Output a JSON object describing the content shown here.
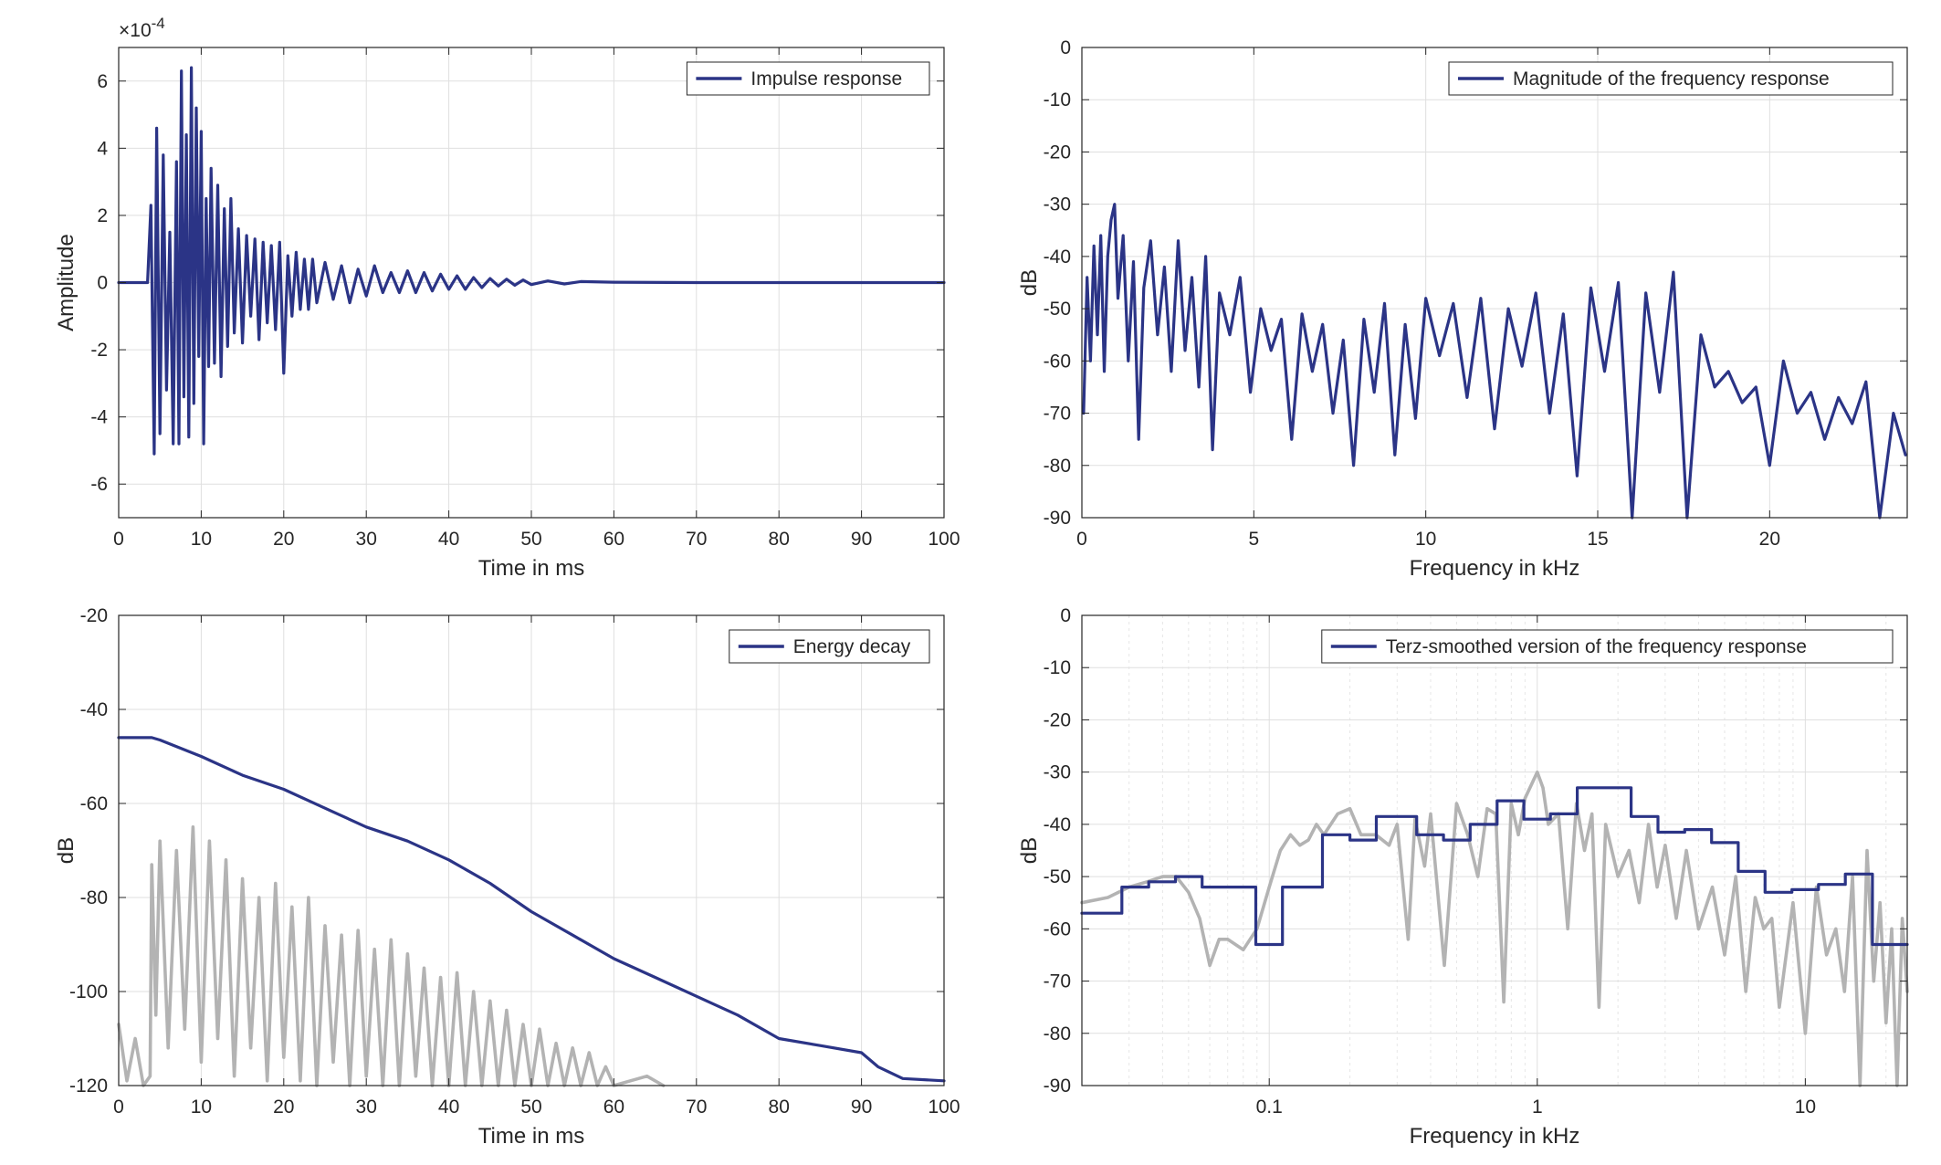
{
  "colors": {
    "main": "#2b3486",
    "gray": "#b3b3b3",
    "axis": "#262626",
    "grid": "#dfdfdf"
  },
  "chart_data": [
    {
      "id": "impulse",
      "type": "line",
      "xlabel": "Time in ms",
      "ylabel": "Amplitude",
      "exponent": "×10^-4",
      "xlim": [
        0,
        100
      ],
      "ylim": [
        -7,
        7
      ],
      "xticks": [
        0,
        10,
        20,
        30,
        40,
        50,
        60,
        70,
        80,
        90,
        100
      ],
      "yticks": [
        -6,
        -4,
        -2,
        0,
        2,
        4,
        6
      ],
      "legend": "top-right",
      "series": [
        {
          "name": "Impulse response",
          "color": "#2b3486",
          "x": [
            0,
            3.5,
            3.9,
            4.3,
            4.6,
            5.0,
            5.4,
            5.8,
            6.2,
            6.6,
            7.0,
            7.3,
            7.6,
            7.9,
            8.2,
            8.5,
            8.8,
            9.1,
            9.4,
            9.7,
            10.0,
            10.3,
            10.6,
            10.9,
            11.2,
            11.6,
            12.0,
            12.4,
            12.8,
            13.2,
            13.6,
            14.0,
            14.5,
            15.0,
            15.5,
            16.0,
            16.5,
            17.0,
            17.5,
            18.0,
            18.5,
            19.0,
            19.5,
            20.0,
            20.5,
            21.0,
            21.5,
            22.0,
            22.5,
            23.0,
            23.5,
            24.0,
            25.0,
            26.0,
            27.0,
            28.0,
            29.0,
            30.0,
            31.0,
            32.0,
            33.0,
            34.0,
            35.0,
            36.0,
            37.0,
            38.0,
            39.0,
            40.0,
            41.0,
            42.0,
            43.0,
            44.0,
            45.0,
            46.0,
            47.0,
            48.0,
            49.0,
            50.0,
            52.0,
            54.0,
            56.0,
            60.0,
            70.0,
            80.0,
            90.0,
            100.0
          ],
          "y": [
            0,
            0,
            2.3,
            -5.1,
            4.6,
            -4.5,
            3.8,
            -3.2,
            1.5,
            -4.8,
            3.6,
            -4.8,
            6.3,
            -3.4,
            4.4,
            -4.6,
            6.4,
            -3.6,
            5.2,
            -2.2,
            4.5,
            -4.8,
            2.5,
            -2.5,
            3.4,
            -2.4,
            2.9,
            -2.8,
            2.2,
            -1.9,
            2.5,
            -1.5,
            1.6,
            -1.8,
            1.4,
            -1.0,
            1.3,
            -1.7,
            1.2,
            -1.2,
            1.1,
            -1.4,
            1.2,
            -2.7,
            0.8,
            -1.0,
            0.9,
            -0.8,
            0.7,
            -0.8,
            0.7,
            -0.6,
            0.6,
            -0.5,
            0.5,
            -0.6,
            0.4,
            -0.4,
            0.5,
            -0.3,
            0.3,
            -0.3,
            0.35,
            -0.3,
            0.3,
            -0.25,
            0.25,
            -0.2,
            0.2,
            -0.2,
            0.15,
            -0.15,
            0.12,
            -0.1,
            0.1,
            -0.08,
            0.08,
            -0.06,
            0.05,
            -0.04,
            0.03,
            0.01,
            0,
            0,
            0,
            0
          ]
        }
      ]
    },
    {
      "id": "magnitude",
      "type": "line",
      "xlabel": "Frequency in kHz",
      "ylabel": "dB",
      "xlim": [
        0,
        24
      ],
      "ylim": [
        -90,
        0
      ],
      "xticks": [
        0,
        5,
        10,
        15,
        20
      ],
      "yticks": [
        0,
        -10,
        -20,
        -30,
        -40,
        -50,
        -60,
        -70,
        -80,
        -90
      ],
      "legend": "top-right",
      "series": [
        {
          "name": "Magnitude of the frequency response",
          "color": "#2b3486",
          "x": [
            0.05,
            0.15,
            0.25,
            0.35,
            0.45,
            0.55,
            0.65,
            0.75,
            0.85,
            0.95,
            1.05,
            1.2,
            1.35,
            1.5,
            1.65,
            1.8,
            2.0,
            2.2,
            2.4,
            2.6,
            2.8,
            3.0,
            3.2,
            3.4,
            3.6,
            3.8,
            4.0,
            4.3,
            4.6,
            4.9,
            5.2,
            5.5,
            5.8,
            6.1,
            6.4,
            6.7,
            7.0,
            7.3,
            7.6,
            7.9,
            8.2,
            8.5,
            8.8,
            9.1,
            9.4,
            9.7,
            10.0,
            10.4,
            10.8,
            11.2,
            11.6,
            12.0,
            12.4,
            12.8,
            13.2,
            13.6,
            14.0,
            14.4,
            14.8,
            15.2,
            15.6,
            16.0,
            16.4,
            16.8,
            17.2,
            17.6,
            18.0,
            18.4,
            18.8,
            19.2,
            19.6,
            20.0,
            20.4,
            20.8,
            21.2,
            21.6,
            22.0,
            22.4,
            22.8,
            23.2,
            23.6,
            23.95
          ],
          "y": [
            -70,
            -44,
            -60,
            -38,
            -55,
            -36,
            -62,
            -40,
            -33,
            -30,
            -48,
            -36,
            -60,
            -41,
            -75,
            -46,
            -37,
            -55,
            -42,
            -62,
            -37,
            -58,
            -44,
            -65,
            -40,
            -77,
            -47,
            -55,
            -44,
            -66,
            -50,
            -58,
            -52,
            -75,
            -51,
            -62,
            -53,
            -70,
            -56,
            -80,
            -52,
            -66,
            -49,
            -78,
            -53,
            -71,
            -48,
            -59,
            -49,
            -67,
            -48,
            -73,
            -50,
            -61,
            -47,
            -70,
            -51,
            -82,
            -46,
            -62,
            -45,
            -90,
            -47,
            -66,
            -43,
            -90,
            -55,
            -65,
            -62,
            -68,
            -65,
            -80,
            -60,
            -70,
            -66,
            -75,
            -67,
            -72,
            -64,
            -90,
            -70,
            -78
          ]
        }
      ]
    },
    {
      "id": "energy",
      "type": "line",
      "xlabel": "Time in ms",
      "ylabel": "dB",
      "xlim": [
        0,
        100
      ],
      "ylim": [
        -120,
        -20
      ],
      "xticks": [
        0,
        10,
        20,
        30,
        40,
        50,
        60,
        70,
        80,
        90,
        100
      ],
      "yticks": [
        -20,
        -40,
        -60,
        -80,
        -100,
        -120
      ],
      "legend": "top-right",
      "series": [
        {
          "name": "Energy decay",
          "color": "#2b3486",
          "x": [
            0,
            4,
            5,
            10,
            15,
            20,
            25,
            30,
            35,
            40,
            45,
            50,
            55,
            60,
            65,
            70,
            75,
            80,
            85,
            90,
            92,
            95,
            100
          ],
          "y": [
            -46,
            -46,
            -46.5,
            -50,
            -54,
            -57,
            -61,
            -65,
            -68,
            -72,
            -77,
            -83,
            -88,
            -93,
            -97,
            -101,
            -105,
            -110,
            -111.5,
            -113,
            -116,
            -118.5,
            -119
          ]
        },
        {
          "color": "#b3b3b3",
          "x": [
            0,
            1,
            2,
            3,
            3.8,
            4.0,
            4.5,
            5,
            6,
            7,
            8,
            9,
            10,
            11,
            12,
            13,
            14,
            15,
            16,
            17,
            18,
            19,
            20,
            21,
            22,
            23,
            24,
            25,
            26,
            27,
            28,
            29,
            30,
            31,
            32,
            33,
            34,
            35,
            36,
            37,
            38,
            39,
            40,
            41,
            42,
            43,
            44,
            45,
            46,
            47,
            48,
            49,
            50,
            51,
            52,
            53,
            54,
            55,
            56,
            57,
            58,
            59,
            60,
            62,
            64,
            66
          ],
          "y": [
            -107,
            -119,
            -110,
            -120,
            -118,
            -73,
            -105,
            -68,
            -112,
            -70,
            -108,
            -65,
            -115,
            -68,
            -110,
            -72,
            -118,
            -76,
            -112,
            -80,
            -119,
            -77,
            -114,
            -82,
            -119,
            -80,
            -120,
            -86,
            -115,
            -88,
            -120,
            -87,
            -118,
            -91,
            -120,
            -89,
            -120,
            -92,
            -118,
            -95,
            -120,
            -97,
            -120,
            -96,
            -120,
            -100,
            -120,
            -102,
            -120,
            -104,
            -120,
            -107,
            -120,
            -108,
            -120,
            -111,
            -120,
            -112,
            -120,
            -113,
            -120,
            -116,
            -120,
            -119,
            -118,
            -120
          ]
        }
      ]
    },
    {
      "id": "terz",
      "type": "line",
      "xlabel": "Frequency in kHz",
      "ylabel": "dB",
      "xscale": "log",
      "xlim": [
        0.02,
        24
      ],
      "ylim": [
        -90,
        0
      ],
      "xticks": [
        0.1,
        1,
        10
      ],
      "xticklabels": [
        "0.1",
        "1",
        "10"
      ],
      "yticks": [
        0,
        -10,
        -20,
        -30,
        -40,
        -50,
        -60,
        -70,
        -80,
        -90
      ],
      "legend": "top-right",
      "series": [
        {
          "name": "Terz-smoothed version of the frequency response",
          "color": "#2b3486",
          "x": [
            0.02,
            0.0282,
            0.0282,
            0.0355,
            0.0355,
            0.0447,
            0.0447,
            0.0562,
            0.0562,
            0.0891,
            0.0891,
            0.112,
            0.112,
            0.158,
            0.158,
            0.2,
            0.2,
            0.251,
            0.251,
            0.355,
            0.355,
            0.447,
            0.447,
            0.562,
            0.562,
            0.708,
            0.708,
            0.891,
            0.891,
            1.12,
            1.12,
            1.41,
            1.41,
            2.24,
            2.24,
            2.82,
            2.82,
            3.55,
            3.55,
            4.47,
            4.47,
            5.62,
            5.62,
            7.08,
            7.08,
            8.91,
            8.91,
            11.2,
            11.2,
            14.1,
            14.1,
            17.8,
            17.8,
            24
          ],
          "y": [
            -57,
            -57,
            -52,
            -52,
            -51,
            -51,
            -50,
            -50,
            -52,
            -52,
            -63,
            -63,
            -52,
            -52,
            -42,
            -42,
            -43,
            -43,
            -38.5,
            -38.5,
            -42,
            -42,
            -43,
            -43,
            -40,
            -40,
            -35.5,
            -35.5,
            -39,
            -39,
            -38,
            -38,
            -33,
            -33,
            -38.5,
            -38.5,
            -41.5,
            -41.5,
            -41,
            -41,
            -43.5,
            -43.5,
            -49,
            -49,
            -53,
            -53,
            -52.5,
            -52.5,
            -51.5,
            -51.5,
            -49.5,
            -49.5,
            -63,
            -63
          ]
        },
        {
          "color": "#b3b3b3",
          "x": [
            0.02,
            0.025,
            0.03,
            0.035,
            0.04,
            0.045,
            0.05,
            0.055,
            0.06,
            0.065,
            0.07,
            0.08,
            0.09,
            0.1,
            0.11,
            0.12,
            0.13,
            0.14,
            0.15,
            0.16,
            0.18,
            0.2,
            0.22,
            0.25,
            0.28,
            0.3,
            0.33,
            0.35,
            0.38,
            0.4,
            0.45,
            0.5,
            0.55,
            0.6,
            0.65,
            0.7,
            0.75,
            0.8,
            0.85,
            0.9,
            1.0,
            1.05,
            1.1,
            1.2,
            1.3,
            1.4,
            1.5,
            1.6,
            1.7,
            1.8,
            2.0,
            2.2,
            2.4,
            2.6,
            2.8,
            3.0,
            3.3,
            3.6,
            4.0,
            4.5,
            5.0,
            5.5,
            6.0,
            6.5,
            7.0,
            7.5,
            8.0,
            9.0,
            10,
            11,
            12,
            13,
            14,
            15,
            16,
            17,
            18,
            19,
            20,
            21,
            22,
            23,
            24
          ],
          "y": [
            -55,
            -54,
            -52,
            -51,
            -50,
            -50,
            -53,
            -58,
            -67,
            -62,
            -62,
            -64,
            -60,
            -52,
            -45,
            -42,
            -44,
            -43,
            -40,
            -42,
            -38,
            -37,
            -42,
            -42,
            -44,
            -40,
            -62,
            -39,
            -48,
            -38,
            -67,
            -36,
            -42,
            -50,
            -37,
            -38,
            -74,
            -36,
            -42,
            -35,
            -30,
            -33,
            -40,
            -38,
            -60,
            -36,
            -45,
            -38,
            -75,
            -40,
            -50,
            -45,
            -55,
            -40,
            -52,
            -44,
            -58,
            -45,
            -60,
            -52,
            -65,
            -50,
            -72,
            -54,
            -60,
            -58,
            -75,
            -55,
            -80,
            -52,
            -65,
            -60,
            -72,
            -50,
            -90,
            -45,
            -70,
            -55,
            -78,
            -60,
            -90,
            -58,
            -72
          ]
        }
      ]
    }
  ]
}
